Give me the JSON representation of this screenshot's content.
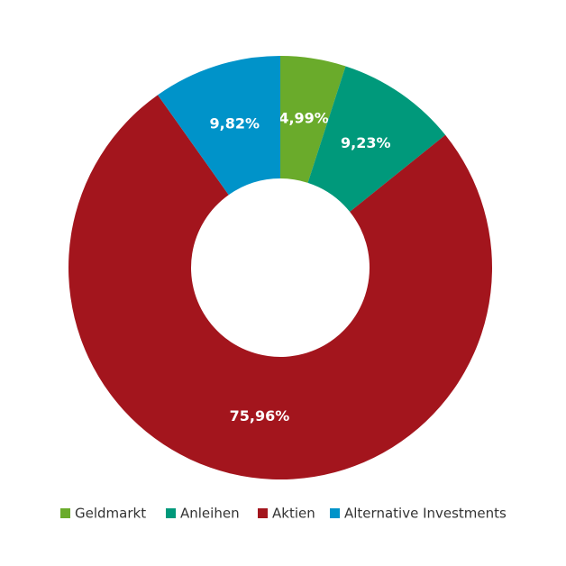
{
  "chart_data": {
    "type": "donut",
    "categories": [
      "Geldmarkt",
      "Anleihen",
      "Aktien",
      "Alternative Investments"
    ],
    "values": [
      4.99,
      9.23,
      75.96,
      9.82
    ],
    "value_labels": [
      "4,99%",
      "9,23%",
      "75,96%",
      "9,82%"
    ],
    "colors": [
      "#6aab2b",
      "#00997b",
      "#a3151d",
      "#0093c9"
    ],
    "legend": "bottom"
  }
}
